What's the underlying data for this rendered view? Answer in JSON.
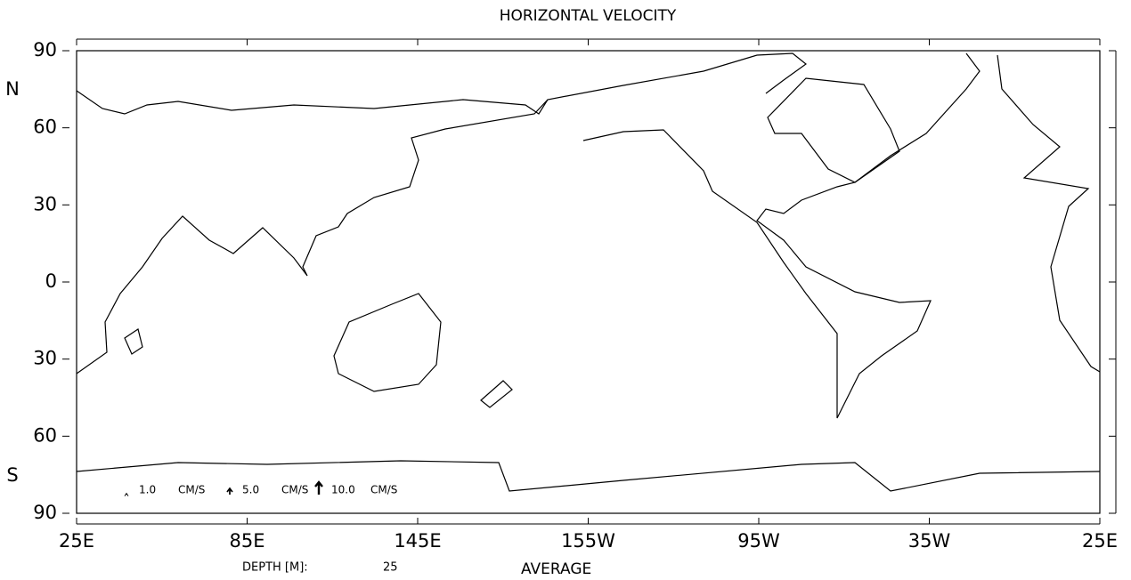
{
  "chart_data": {
    "type": "vector",
    "title": "HORIZONTAL VELOCITY",
    "xlim": [
      25,
      385
    ],
    "ylim": [
      -90,
      90
    ],
    "xticks": [
      {
        "value": 25,
        "label": "25E"
      },
      {
        "value": 85,
        "label": "85E"
      },
      {
        "value": 145,
        "label": "145E"
      },
      {
        "value": 205,
        "label": "155W"
      },
      {
        "value": 265,
        "label": "95W"
      },
      {
        "value": 325,
        "label": "35W"
      },
      {
        "value": 385,
        "label": "25E"
      }
    ],
    "yticks": [
      {
        "value": 90,
        "label": "90"
      },
      {
        "value": 60,
        "label": "60"
      },
      {
        "value": 30,
        "label": "30"
      },
      0,
      {
        "value": -30,
        "label": "30"
      },
      {
        "value": -60,
        "label": "60"
      },
      {
        "value": -90,
        "label": "90"
      }
    ],
    "hemisphere_labels": {
      "north": "N",
      "south": "S"
    },
    "legend": {
      "unit": "CM/S",
      "reference_vectors": [
        {
          "value": 1,
          "label": "1.0"
        },
        {
          "value": 5,
          "label": "5.0"
        },
        {
          "value": 10,
          "label": "10.0"
        }
      ]
    },
    "depth_label": "DEPTH [M]:",
    "depth": 25,
    "period": "AVERAGE"
  }
}
